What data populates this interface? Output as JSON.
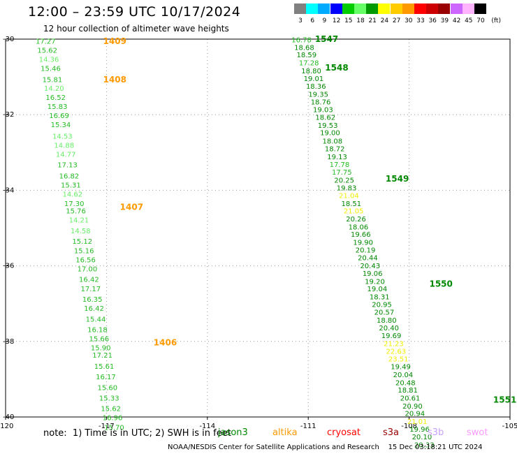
{
  "header": {
    "title": "12:00 – 23:59 UTC 10/17/2024",
    "subtitle": "12 hour collection of altimeter wave heights"
  },
  "colorbar": {
    "bins": [
      {
        "label": "3",
        "color": "#808080"
      },
      {
        "label": "6",
        "color": "#00ffff"
      },
      {
        "label": "9",
        "color": "#00aaff"
      },
      {
        "label": "12",
        "color": "#0000ff"
      },
      {
        "label": "15",
        "color": "#00cc00"
      },
      {
        "label": "18",
        "color": "#66ff66"
      },
      {
        "label": "21",
        "color": "#009900"
      },
      {
        "label": "24",
        "color": "#ffff00"
      },
      {
        "label": "27",
        "color": "#ffcc00"
      },
      {
        "label": "30",
        "color": "#ff9900"
      },
      {
        "label": "33",
        "color": "#ff0000"
      },
      {
        "label": "36",
        "color": "#cc0000"
      },
      {
        "label": "39",
        "color": "#990000"
      },
      {
        "label": "42",
        "color": "#cc66ff"
      },
      {
        "label": "45",
        "color": "#ffb3ff"
      },
      {
        "label": "70",
        "color": "#000000"
      }
    ],
    "unit_label": "(ft)"
  },
  "chart_data": {
    "type": "scatter",
    "title": "12:00 – 23:59 UTC 10/17/2024",
    "subtitle": "12 hour collection of altimeter wave heights",
    "xlim": [
      -120,
      -105
    ],
    "ylim": [
      -40,
      -30
    ],
    "x_ticks": [
      "-120",
      "-117",
      "-114",
      "-111",
      "-108",
      "-105"
    ],
    "y_ticks": [
      "-30",
      "-32",
      "-34",
      "-36",
      "-38",
      "-40"
    ],
    "grid": "dotted",
    "color_by": "wave height (ft)",
    "tracks": [
      {
        "passes": [
          {
            "label": "1409",
            "lon": -117.1,
            "lat": -30.06
          },
          {
            "label": "1408",
            "lon": -117.1,
            "lat": -31.07
          },
          {
            "label": "1407",
            "lon": -116.6,
            "lat": -34.45
          },
          {
            "label": "1406",
            "lon": -115.6,
            "lat": -38.03
          }
        ],
        "points": [
          {
            "lat": -30.06,
            "lon": -118.81,
            "swh": 17.27
          },
          {
            "lat": -30.3,
            "lon": -118.76,
            "swh": 15.62
          },
          {
            "lat": -30.54,
            "lon": -118.71,
            "swh": 14.36
          },
          {
            "lat": -30.78,
            "lon": -118.66,
            "swh": 15.46
          },
          {
            "lat": -31.07,
            "lon": -118.61,
            "swh": 15.81
          },
          {
            "lat": -31.3,
            "lon": -118.56,
            "swh": 14.2
          },
          {
            "lat": -31.54,
            "lon": -118.51,
            "swh": 16.52
          },
          {
            "lat": -31.78,
            "lon": -118.46,
            "swh": 15.83
          },
          {
            "lat": -32.02,
            "lon": -118.41,
            "swh": 16.69
          },
          {
            "lat": -32.26,
            "lon": -118.36,
            "swh": 15.34
          },
          {
            "lat": -32.57,
            "lon": -118.31,
            "swh": 14.53
          },
          {
            "lat": -32.81,
            "lon": -118.26,
            "swh": 14.88
          },
          {
            "lat": -33.05,
            "lon": -118.21,
            "swh": 14.77
          },
          {
            "lat": -33.33,
            "lon": -118.16,
            "swh": 17.13
          },
          {
            "lat": -33.62,
            "lon": -118.11,
            "swh": 16.82
          },
          {
            "lat": -33.86,
            "lon": -118.06,
            "swh": 15.31
          },
          {
            "lat": -34.1,
            "lon": -118.01,
            "swh": 14.62
          },
          {
            "lat": -34.35,
            "lon": -117.96,
            "swh": 17.3
          },
          {
            "lat": -34.55,
            "lon": -117.91,
            "swh": 15.76
          },
          {
            "lat": -34.79,
            "lon": -117.82,
            "swh": 14.21
          },
          {
            "lat": -35.07,
            "lon": -117.77,
            "swh": 14.58
          },
          {
            "lat": -35.35,
            "lon": -117.72,
            "swh": 15.12
          },
          {
            "lat": -35.6,
            "lon": -117.67,
            "swh": 15.16
          },
          {
            "lat": -35.84,
            "lon": -117.62,
            "swh": 16.56
          },
          {
            "lat": -36.08,
            "lon": -117.57,
            "swh": 17.0
          },
          {
            "lat": -36.36,
            "lon": -117.52,
            "swh": 16.42
          },
          {
            "lat": -36.61,
            "lon": -117.47,
            "swh": 17.17
          },
          {
            "lat": -36.89,
            "lon": -117.42,
            "swh": 16.35
          },
          {
            "lat": -37.13,
            "lon": -117.37,
            "swh": 16.42
          },
          {
            "lat": -37.41,
            "lon": -117.32,
            "swh": 15.44
          },
          {
            "lat": -37.69,
            "lon": -117.27,
            "swh": 16.18
          },
          {
            "lat": -37.93,
            "lon": -117.22,
            "swh": 15.66
          },
          {
            "lat": -38.17,
            "lon": -117.17,
            "swh": 15.9
          },
          {
            "lat": -38.36,
            "lon": -117.12,
            "swh": 17.21
          },
          {
            "lat": -38.66,
            "lon": -117.07,
            "swh": 15.61
          },
          {
            "lat": -38.94,
            "lon": -117.02,
            "swh": 16.17
          },
          {
            "lat": -39.22,
            "lon": -116.97,
            "swh": 15.6
          },
          {
            "lat": -39.5,
            "lon": -116.92,
            "swh": 15.33
          },
          {
            "lat": -39.78,
            "lon": -116.87,
            "swh": 15.62
          },
          {
            "lat": -40.02,
            "lon": -116.82,
            "swh": 16.96
          },
          {
            "lat": -40.28,
            "lon": -116.77,
            "swh": 15.7
          }
        ]
      },
      {
        "passes": [
          {
            "label": "1547",
            "lon": -110.8,
            "lat": -30.0
          },
          {
            "label": "1548",
            "lon": -110.5,
            "lat": -30.76
          },
          {
            "label": "1549",
            "lon": -108.7,
            "lat": -33.7
          },
          {
            "label": "1550",
            "lon": -107.4,
            "lat": -36.48
          },
          {
            "label": "1551",
            "lon": -105.5,
            "lat": -39.55
          }
        ],
        "points": [
          {
            "lat": -30.02,
            "lon": -111.2,
            "swh": 16.78
          },
          {
            "lat": -30.22,
            "lon": -111.12,
            "swh": 18.68
          },
          {
            "lat": -30.42,
            "lon": -111.05,
            "swh": 18.59
          },
          {
            "lat": -30.63,
            "lon": -110.98,
            "swh": 17.28
          },
          {
            "lat": -30.84,
            "lon": -110.91,
            "swh": 18.8
          },
          {
            "lat": -31.04,
            "lon": -110.84,
            "swh": 19.01
          },
          {
            "lat": -31.25,
            "lon": -110.77,
            "swh": 18.36
          },
          {
            "lat": -31.46,
            "lon": -110.7,
            "swh": 19.35
          },
          {
            "lat": -31.66,
            "lon": -110.63,
            "swh": 18.76
          },
          {
            "lat": -31.87,
            "lon": -110.56,
            "swh": 19.03
          },
          {
            "lat": -32.07,
            "lon": -110.49,
            "swh": 18.62
          },
          {
            "lat": -32.28,
            "lon": -110.42,
            "swh": 19.53
          },
          {
            "lat": -32.48,
            "lon": -110.35,
            "swh": 19.0
          },
          {
            "lat": -32.7,
            "lon": -110.28,
            "swh": 18.08
          },
          {
            "lat": -32.9,
            "lon": -110.21,
            "swh": 18.72
          },
          {
            "lat": -33.11,
            "lon": -110.14,
            "swh": 19.13
          },
          {
            "lat": -33.32,
            "lon": -110.07,
            "swh": 17.78
          },
          {
            "lat": -33.52,
            "lon": -110.0,
            "swh": 17.75
          },
          {
            "lat": -33.73,
            "lon": -109.93,
            "swh": 20.25
          },
          {
            "lat": -33.94,
            "lon": -109.86,
            "swh": 19.83
          },
          {
            "lat": -34.14,
            "lon": -109.79,
            "swh": 21.04
          },
          {
            "lat": -34.35,
            "lon": -109.72,
            "swh": 18.51
          },
          {
            "lat": -34.55,
            "lon": -109.65,
            "swh": 21.05
          },
          {
            "lat": -34.76,
            "lon": -109.58,
            "swh": 20.26
          },
          {
            "lat": -34.97,
            "lon": -109.51,
            "swh": 18.06
          },
          {
            "lat": -35.17,
            "lon": -109.44,
            "swh": 19.66
          },
          {
            "lat": -35.38,
            "lon": -109.37,
            "swh": 19.9
          },
          {
            "lat": -35.58,
            "lon": -109.3,
            "swh": 20.19
          },
          {
            "lat": -35.79,
            "lon": -109.23,
            "swh": 20.44
          },
          {
            "lat": -36.0,
            "lon": -109.16,
            "swh": 20.43
          },
          {
            "lat": -36.2,
            "lon": -109.09,
            "swh": 19.06
          },
          {
            "lat": -36.41,
            "lon": -109.02,
            "swh": 19.2
          },
          {
            "lat": -36.61,
            "lon": -108.95,
            "swh": 19.04
          },
          {
            "lat": -36.82,
            "lon": -108.88,
            "swh": 18.31
          },
          {
            "lat": -37.02,
            "lon": -108.81,
            "swh": 20.95
          },
          {
            "lat": -37.23,
            "lon": -108.74,
            "swh": 20.57
          },
          {
            "lat": -37.44,
            "lon": -108.67,
            "swh": 18.8
          },
          {
            "lat": -37.64,
            "lon": -108.6,
            "swh": 20.4
          },
          {
            "lat": -37.85,
            "lon": -108.53,
            "swh": 19.69
          },
          {
            "lat": -38.06,
            "lon": -108.46,
            "swh": 21.23
          },
          {
            "lat": -38.26,
            "lon": -108.39,
            "swh": 22.63
          },
          {
            "lat": -38.47,
            "lon": -108.32,
            "swh": 23.51
          },
          {
            "lat": -38.67,
            "lon": -108.25,
            "swh": 19.49
          },
          {
            "lat": -38.88,
            "lon": -108.18,
            "swh": 20.04
          },
          {
            "lat": -39.09,
            "lon": -108.11,
            "swh": 20.48
          },
          {
            "lat": -39.29,
            "lon": -108.04,
            "swh": 18.81
          },
          {
            "lat": -39.5,
            "lon": -107.97,
            "swh": 20.61
          },
          {
            "lat": -39.71,
            "lon": -107.9,
            "swh": 20.9
          },
          {
            "lat": -39.91,
            "lon": -107.83,
            "swh": 20.94
          },
          {
            "lat": -40.12,
            "lon": -107.76,
            "swh": 21.01
          },
          {
            "lat": -40.32,
            "lon": -107.69,
            "swh": 19.96
          },
          {
            "lat": -40.53,
            "lon": -107.62,
            "swh": 20.1
          },
          {
            "lat": -40.74,
            "lon": -107.55,
            "swh": 20.33
          }
        ]
      }
    ]
  },
  "footer": {
    "note": "note:  1) Time is in UTC; 2) SWH is in feet",
    "satellites": [
      {
        "name": "jason3",
        "color": "#008800"
      },
      {
        "name": "altika",
        "color": "#ff9900"
      },
      {
        "name": "cryosat",
        "color": "#ff0000"
      },
      {
        "name": "s3a",
        "color": "#990000"
      },
      {
        "name": "s3b",
        "color": "#c8a0ff"
      },
      {
        "name": "swot",
        "color": "#ff99ff"
      }
    ],
    "credit": "NOAA/NESDIS Center for Satellite Applications and Research    15 Dec 03:18:21 UTC 2024"
  }
}
